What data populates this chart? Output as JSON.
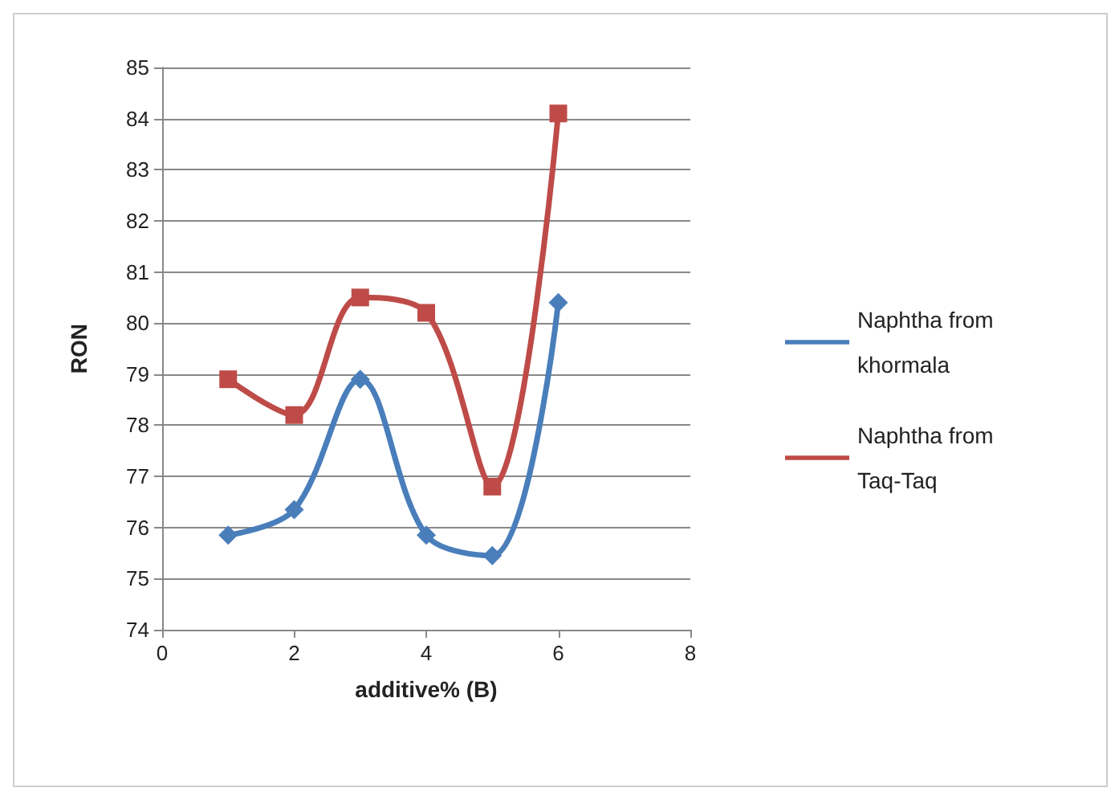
{
  "chart_data": {
    "type": "line",
    "xlabel": "additive% (B)",
    "ylabel": "RON",
    "x": [
      1,
      2,
      3,
      4,
      5,
      6
    ],
    "series": [
      {
        "name": "Naphtha from khormala",
        "color": "#4a7ebb",
        "marker": "diamond",
        "values": [
          75.85,
          76.35,
          78.9,
          75.85,
          75.45,
          80.4
        ]
      },
      {
        "name": "Naphtha from Taq-Taq",
        "color": "#be4b48",
        "marker": "square",
        "values": [
          78.9,
          78.2,
          80.5,
          80.2,
          76.8,
          84.1
        ]
      }
    ],
    "xlim": [
      0,
      8
    ],
    "xticks": [
      0,
      2,
      4,
      6,
      8
    ],
    "ylim": [
      74,
      85
    ],
    "yticks": [
      74,
      75,
      76,
      77,
      78,
      79,
      80,
      81,
      82,
      83,
      84,
      85
    ],
    "grid": "y",
    "legend": "right",
    "line_style": "solid"
  }
}
